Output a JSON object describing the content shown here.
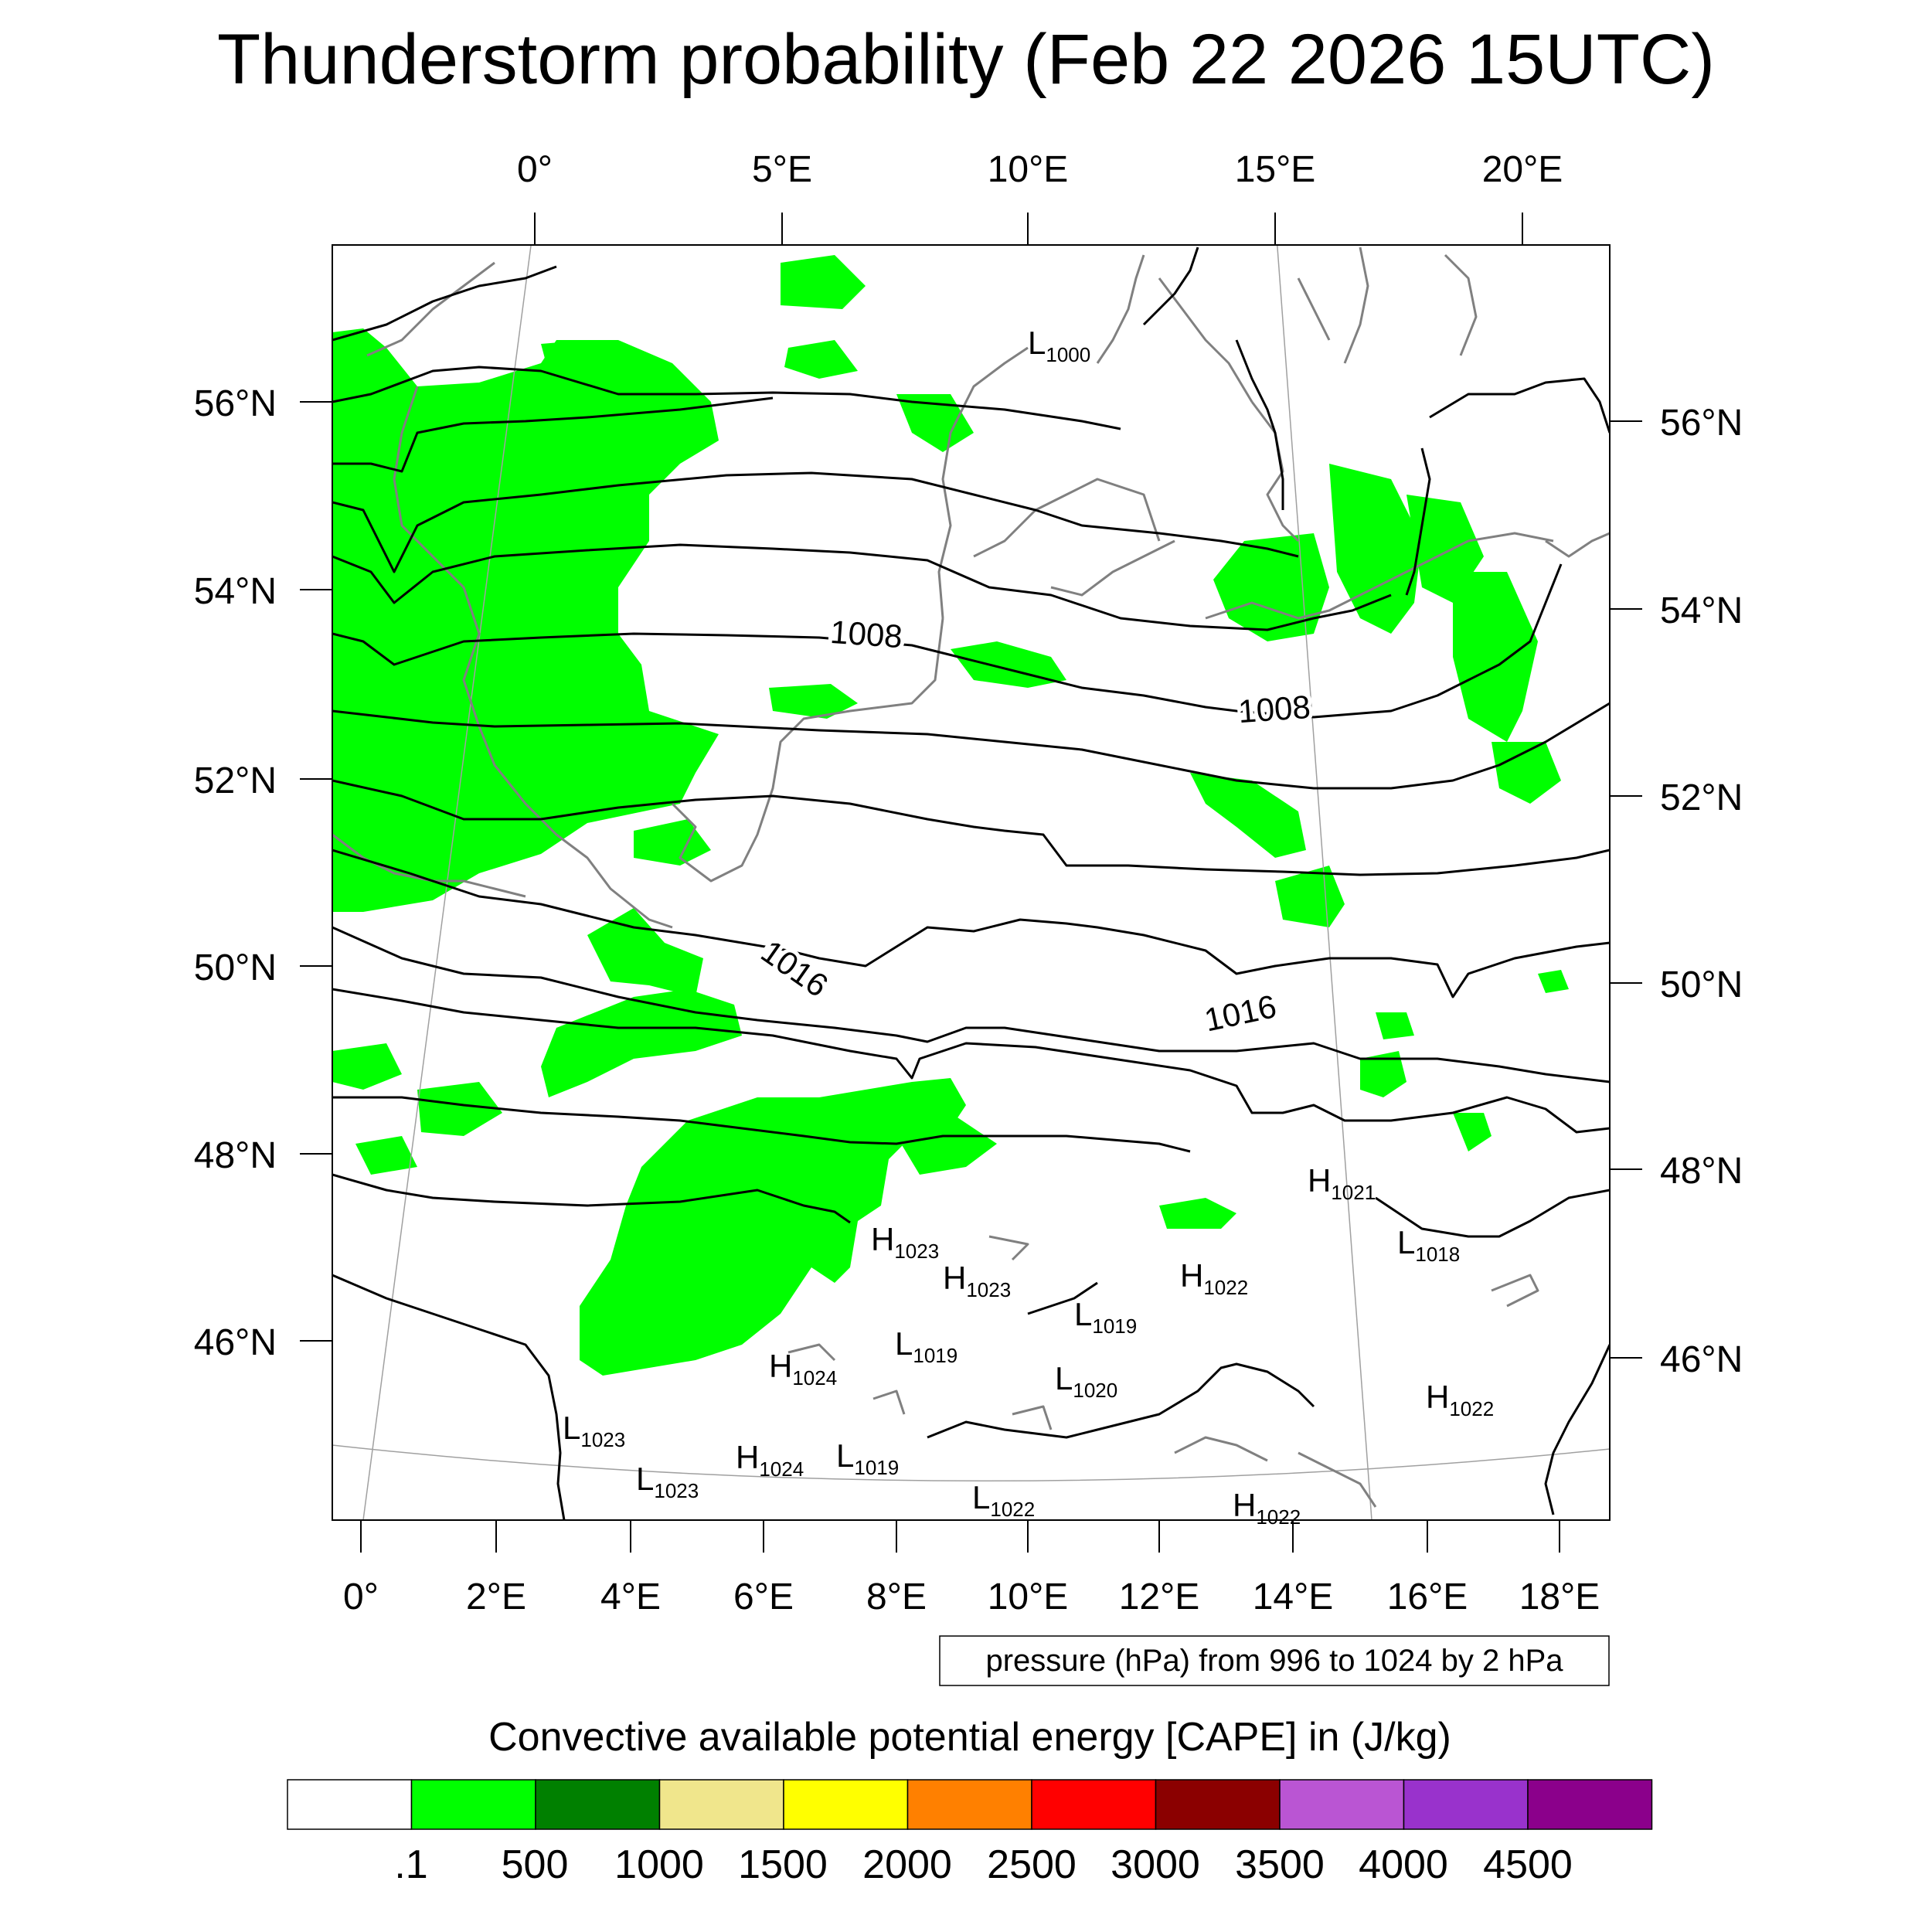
{
  "title": "Thunderstorm probability (Feb 22 2026 15UTC)",
  "axes": {
    "top_lon_labels": [
      "0°",
      "5°E",
      "10°E",
      "15°E",
      "20°E"
    ],
    "bottom_lon_labels": [
      "0°",
      "2°E",
      "4°E",
      "6°E",
      "8°E",
      "10°E",
      "12°E",
      "14°E",
      "16°E",
      "18°E"
    ],
    "left_lat_labels": [
      "56°N",
      "54°N",
      "52°N",
      "50°N",
      "48°N",
      "46°N"
    ],
    "right_lat_labels": [
      "56°N",
      "54°N",
      "52°N",
      "50°N",
      "48°N",
      "46°N"
    ]
  },
  "isobar_labels": [
    "1008",
    "1008",
    "1016",
    "1016"
  ],
  "pressure_centers": [
    {
      "type": "L",
      "value": "1000"
    },
    {
      "type": "H",
      "value": "1021"
    },
    {
      "type": "L",
      "value": "1018"
    },
    {
      "type": "H",
      "value": "1023"
    },
    {
      "type": "H",
      "value": "1023"
    },
    {
      "type": "H",
      "value": "1022"
    },
    {
      "type": "L",
      "value": "1019"
    },
    {
      "type": "L",
      "value": "1019"
    },
    {
      "type": "H",
      "value": "1024"
    },
    {
      "type": "L",
      "value": "1020"
    },
    {
      "type": "H",
      "value": "1022"
    },
    {
      "type": "L",
      "value": "1023"
    },
    {
      "type": "L",
      "value": "1023"
    },
    {
      "type": "H",
      "value": "1024"
    },
    {
      "type": "L",
      "value": "1019"
    },
    {
      "type": "L",
      "value": "1022"
    },
    {
      "type": "H",
      "value": "1022"
    }
  ],
  "contour_info": "pressure (hPa) from 996 to 1024 by 2 hPa",
  "colorbar": {
    "title": "Convective available potential energy [CAPE] in (J/kg)",
    "labels": [
      ".1",
      "500",
      "1000",
      "1500",
      "2000",
      "2500",
      "3000",
      "3500",
      "4000",
      "4500"
    ],
    "colors": [
      "#ffffff",
      "#00ff00",
      "#008000",
      "#f0e68c",
      "#ffff00",
      "#ff8000",
      "#ff0000",
      "#8b0000",
      "#ba55d3",
      "#9932cc",
      "#8b008b"
    ]
  },
  "colors": {
    "cape_fill": "#00ff00",
    "isobar": "#000000",
    "coastline": "#808080",
    "graticule": "#a0a0a0"
  }
}
